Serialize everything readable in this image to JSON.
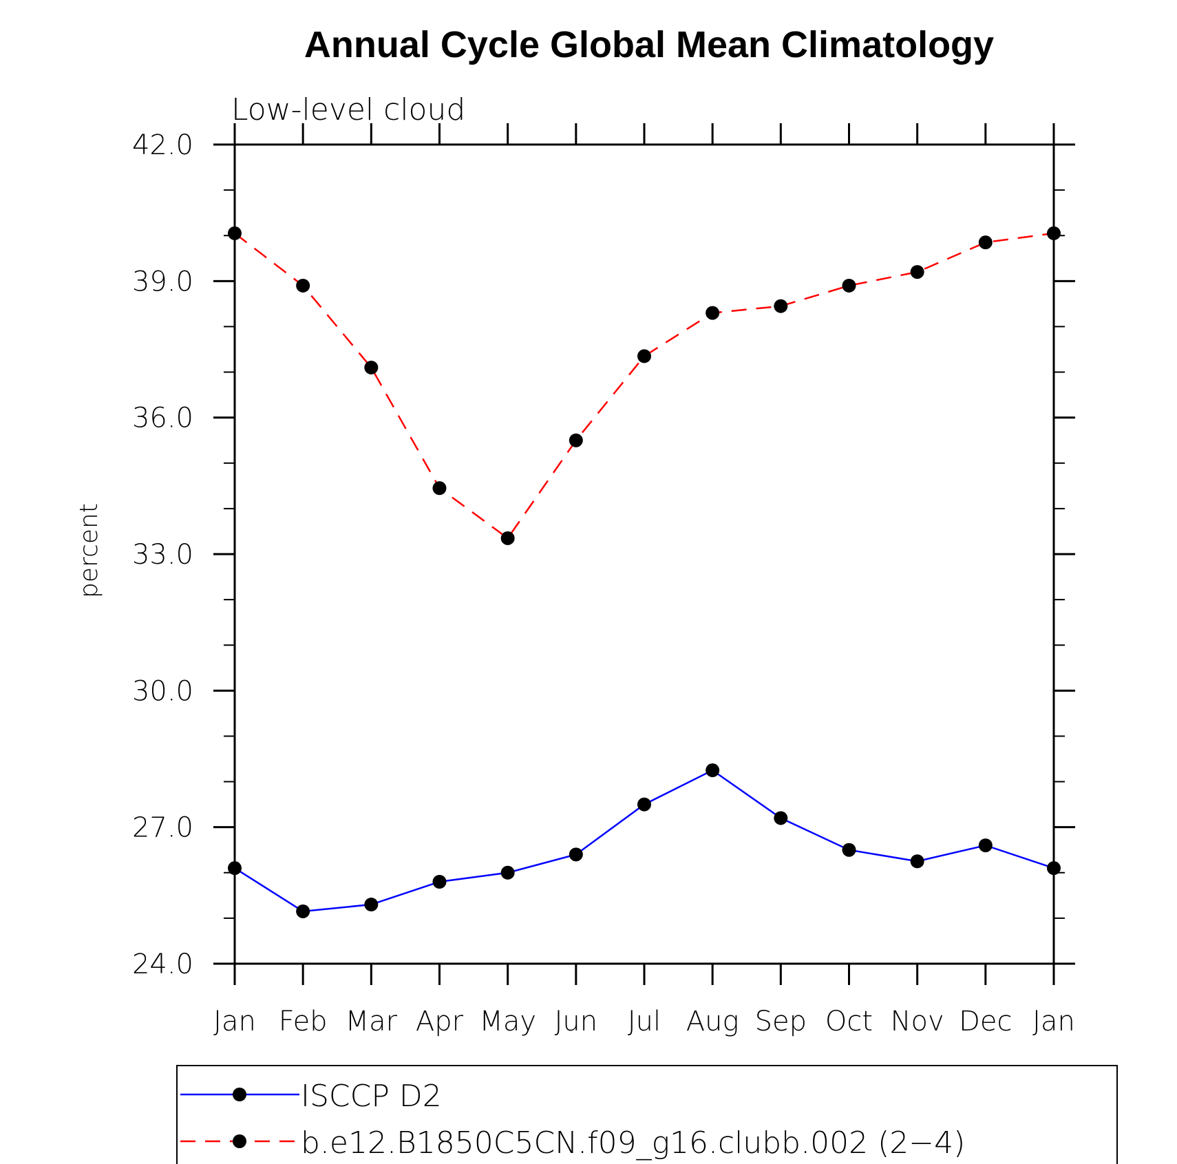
{
  "chart_data": {
    "type": "line",
    "title": "Annual Cycle Global Mean Climatology",
    "subtitle": "Low-level cloud",
    "xlabel": "",
    "ylabel": "percent",
    "ylim": [
      24.0,
      42.0
    ],
    "yticks": [
      "24.0",
      "27.0",
      "30.0",
      "33.0",
      "36.0",
      "39.0",
      "42.0"
    ],
    "ytick_values": [
      24,
      27,
      30,
      33,
      36,
      39,
      42
    ],
    "categories": [
      "Jan",
      "Feb",
      "Mar",
      "Apr",
      "May",
      "Jun",
      "Jul",
      "Aug",
      "Sep",
      "Oct",
      "Nov",
      "Dec",
      "Jan"
    ],
    "legend_position": "bottom",
    "series": [
      {
        "name": "ISCCP D2",
        "color": "#0000ff",
        "dash": "solid",
        "marker": "filled-circle",
        "values": [
          26.1,
          25.15,
          25.3,
          25.8,
          26.0,
          26.4,
          27.5,
          28.25,
          27.2,
          26.5,
          26.25,
          26.6,
          26.1
        ]
      },
      {
        "name": "b.e12.B1850C5CN.f09_g16.clubb.002 (2−4)",
        "color": "#ff0000",
        "dash": "dashed",
        "marker": "filled-circle",
        "values": [
          40.05,
          38.9,
          37.1,
          34.45,
          33.35,
          35.5,
          37.35,
          38.3,
          38.45,
          38.9,
          39.2,
          39.85,
          40.05
        ]
      }
    ]
  }
}
